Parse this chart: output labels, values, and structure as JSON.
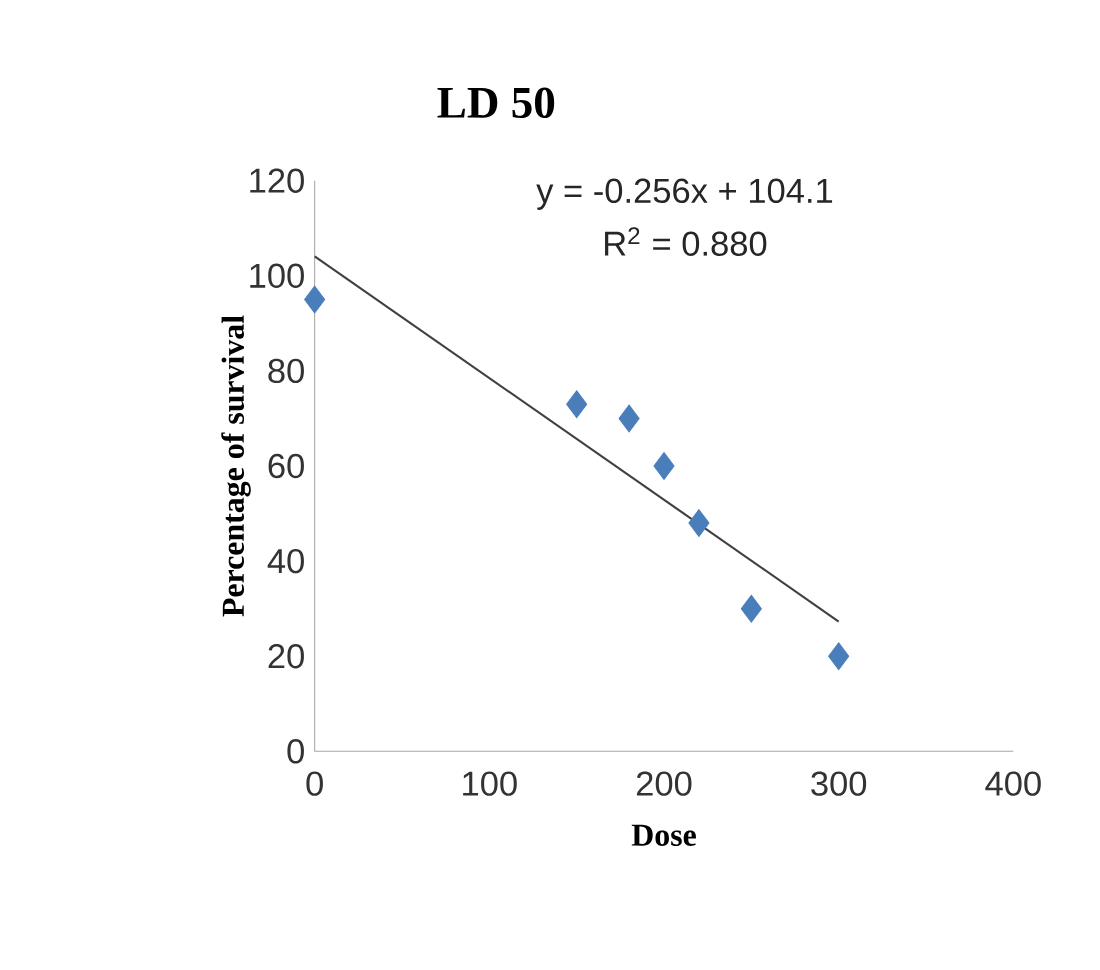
{
  "chart_data": {
    "type": "scatter",
    "title": "LD 50",
    "xlabel": "Dose",
    "ylabel": "Percentage of survival",
    "annotations": [
      "y = -0.256x + 104.1",
      "R$^{2}$ = 0.880"
    ],
    "xlim": [
      0,
      400
    ],
    "xticks": [
      0,
      100,
      200,
      300,
      400
    ],
    "ylim": [
      0,
      120
    ],
    "yticks": [
      0,
      20,
      40,
      60,
      80,
      100,
      120
    ],
    "grid": false,
    "marker": "diamond",
    "series": [
      {
        "color": "#4a7ebb",
        "x": [
          0,
          150,
          180,
          200,
          220,
          250,
          300
        ],
        "values": [
          95,
          73,
          70,
          60,
          48,
          30,
          20
        ]
      },
      {
        "type": "line",
        "color": "#404040",
        "line_style": "solid",
        "marker": "none",
        "x": [
          0,
          300
        ],
        "values": [
          104.1,
          27.3
        ]
      }
    ]
  }
}
